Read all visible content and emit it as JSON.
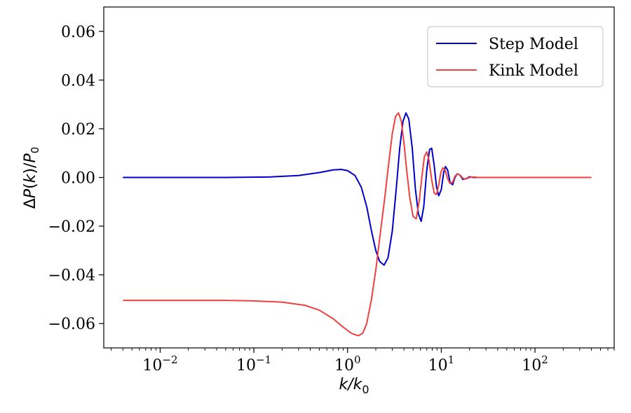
{
  "chart_data": {
    "type": "line",
    "xscale": "log",
    "xlim": [
      0.0025,
      700
    ],
    "ylim": [
      -0.07,
      0.07
    ],
    "xlabel": "k/k₀",
    "ylabel": "ΔP(k)/P₀",
    "x_ticks": [
      {
        "value": 0.01,
        "base": "10",
        "exp": "−2"
      },
      {
        "value": 0.1,
        "base": "10",
        "exp": "−1"
      },
      {
        "value": 1,
        "base": "10",
        "exp": "0"
      },
      {
        "value": 10,
        "base": "10",
        "exp": "1"
      },
      {
        "value": 100,
        "base": "10",
        "exp": "2"
      }
    ],
    "y_ticks": [
      {
        "value": 0.06,
        "label": "0.06"
      },
      {
        "value": 0.04,
        "label": "0.04"
      },
      {
        "value": 0.02,
        "label": "0.02"
      },
      {
        "value": 0.0,
        "label": "0.00"
      },
      {
        "value": -0.02,
        "label": "−0.02"
      },
      {
        "value": -0.04,
        "label": "−0.04"
      },
      {
        "value": -0.06,
        "label": "−0.06"
      }
    ],
    "grid": false,
    "legend": "top-right",
    "series": [
      {
        "name": "Step Model",
        "color": "#0000cc",
        "points": [
          [
            0.004,
            0.0
          ],
          [
            0.05,
            0.0
          ],
          [
            0.15,
            0.0002
          ],
          [
            0.3,
            0.0008
          ],
          [
            0.5,
            0.002
          ],
          [
            0.7,
            0.0031
          ],
          [
            0.85,
            0.0033
          ],
          [
            1.0,
            0.0028
          ],
          [
            1.2,
            0.0008
          ],
          [
            1.4,
            -0.004
          ],
          [
            1.6,
            -0.012
          ],
          [
            1.8,
            -0.022
          ],
          [
            2.0,
            -0.03
          ],
          [
            2.2,
            -0.0345
          ],
          [
            2.45,
            -0.036
          ],
          [
            2.7,
            -0.033
          ],
          [
            3.0,
            -0.022
          ],
          [
            3.3,
            -0.005
          ],
          [
            3.6,
            0.012
          ],
          [
            3.9,
            0.023
          ],
          [
            4.2,
            0.0265
          ],
          [
            4.5,
            0.024
          ],
          [
            4.9,
            0.012
          ],
          [
            5.3,
            -0.005
          ],
          [
            5.7,
            -0.015
          ],
          [
            6.1,
            -0.018
          ],
          [
            6.5,
            -0.012
          ],
          [
            7.0,
            0.003
          ],
          [
            7.5,
            0.0115
          ],
          [
            7.9,
            0.012
          ],
          [
            8.4,
            0.005
          ],
          [
            8.9,
            -0.004
          ],
          [
            9.4,
            -0.0075
          ],
          [
            10.0,
            -0.005
          ],
          [
            10.6,
            0.002
          ],
          [
            11.1,
            0.0045
          ],
          [
            11.7,
            0.003
          ],
          [
            12.4,
            -0.002
          ],
          [
            13.2,
            -0.003
          ],
          [
            14.0,
            0.0
          ],
          [
            14.8,
            0.0015
          ],
          [
            15.8,
            0.001
          ],
          [
            17.0,
            -0.0008
          ],
          [
            18.5,
            -0.0005
          ],
          [
            20.0,
            0.0003
          ],
          [
            22.0,
            0.0
          ],
          [
            30.0,
            0.0
          ],
          [
            100.0,
            0.0
          ],
          [
            400.0,
            0.0
          ]
        ]
      },
      {
        "name": "Kink Model",
        "color": "#f04040",
        "points": [
          [
            0.004,
            -0.0505
          ],
          [
            0.05,
            -0.0505
          ],
          [
            0.1,
            -0.0507
          ],
          [
            0.2,
            -0.0512
          ],
          [
            0.35,
            -0.0525
          ],
          [
            0.5,
            -0.0545
          ],
          [
            0.7,
            -0.058
          ],
          [
            0.9,
            -0.0615
          ],
          [
            1.1,
            -0.064
          ],
          [
            1.3,
            -0.065
          ],
          [
            1.45,
            -0.064
          ],
          [
            1.6,
            -0.06
          ],
          [
            1.8,
            -0.05
          ],
          [
            2.0,
            -0.038
          ],
          [
            2.25,
            -0.022
          ],
          [
            2.5,
            -0.008
          ],
          [
            2.75,
            0.006
          ],
          [
            3.0,
            0.018
          ],
          [
            3.25,
            0.025
          ],
          [
            3.5,
            0.0265
          ],
          [
            3.75,
            0.023
          ],
          [
            4.0,
            0.014
          ],
          [
            4.3,
            0.002
          ],
          [
            4.6,
            -0.008
          ],
          [
            5.0,
            -0.016
          ],
          [
            5.4,
            -0.017
          ],
          [
            5.8,
            -0.01
          ],
          [
            6.2,
            0.0
          ],
          [
            6.6,
            0.0085
          ],
          [
            7.0,
            0.0105
          ],
          [
            7.4,
            0.007
          ],
          [
            7.9,
            -0.001
          ],
          [
            8.4,
            -0.0065
          ],
          [
            8.9,
            -0.007
          ],
          [
            9.4,
            -0.003
          ],
          [
            9.9,
            0.002
          ],
          [
            10.4,
            0.004
          ],
          [
            11.0,
            0.003
          ],
          [
            11.7,
            -0.0005
          ],
          [
            12.4,
            -0.0025
          ],
          [
            13.2,
            -0.002
          ],
          [
            14.0,
            0.0005
          ],
          [
            14.9,
            0.0015
          ],
          [
            16.0,
            0.0008
          ],
          [
            17.2,
            -0.0005
          ],
          [
            18.5,
            -0.0006
          ],
          [
            20.0,
            0.0
          ],
          [
            22.0,
            0.0002
          ],
          [
            25.0,
            0.0
          ],
          [
            30.0,
            0.0
          ],
          [
            100.0,
            0.0
          ],
          [
            400.0,
            0.0
          ]
        ]
      }
    ]
  }
}
